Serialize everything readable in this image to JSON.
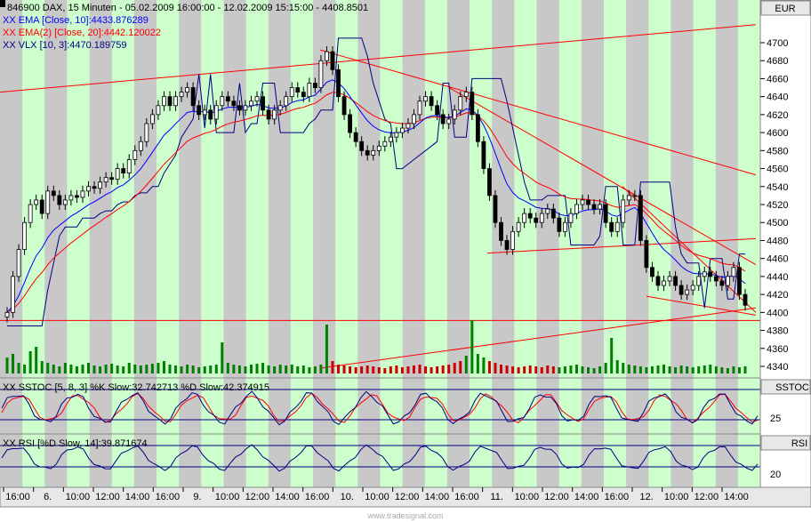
{
  "header": {
    "line1": "846900 DAX, 15 Minuten - 05.02.2009 16:00:00 - 12.02.2009 15:15:00 - 4408.8501",
    "line2": "XX EMA [Close, 10]:4433.876289",
    "line3": "XX EMA(2) [Close, 20]:4442.120022",
    "line4": "XX VLX [10, 3]:4470.189759"
  },
  "colors": {
    "green_band": "#ccffcc",
    "grey_band": "#c8c8c8",
    "ema10": "#0000ff",
    "ema20": "#ff0000",
    "vlx": "#000080",
    "trendline": "#ff0000",
    "volume": "#008000",
    "volume_red": "#cc0000"
  },
  "right_axis": {
    "currency": "EUR",
    "ticks": [
      "4700",
      "4680",
      "4660",
      "4640",
      "4620",
      "4600",
      "4580",
      "4560",
      "4540",
      "4520",
      "4500",
      "4480",
      "4460",
      "4440",
      "4420",
      "4400",
      "4380",
      "4360",
      "4340"
    ],
    "sstoc_label": "SSTOC",
    "sstoc_tick": "25",
    "rsi_label": "RSI",
    "rsi_tick": "20"
  },
  "sstoc": {
    "label": "XX SSTOC [5, 8, 3] %K Slow:32.742713 %D Slow:42.374915"
  },
  "rsi": {
    "label": "XX RSI [%D Slow, 14]:39.871674"
  },
  "x_axis": {
    "labels": [
      "16:00",
      "6.",
      "10:00",
      "12:00",
      "14:00",
      "16:00",
      "9.",
      "10:00",
      "12:00",
      "14:00",
      "16:00",
      "10.",
      "10:00",
      "12:00",
      "14:00",
      "16:00",
      "11.",
      "10:00",
      "12:00",
      "14:00",
      "16:00",
      "12.",
      "10:00",
      "12:00",
      "14:00"
    ]
  },
  "watermark": "www.tradesignal.com",
  "chart_data": {
    "type": "candlestick",
    "symbol": "846900 DAX",
    "interval": "15 Minuten",
    "ylim": [
      4330,
      4720
    ],
    "close_series": [
      4400,
      4440,
      4470,
      4500,
      4520,
      4525,
      4510,
      4535,
      4530,
      4520,
      4525,
      4530,
      4528,
      4535,
      4540,
      4538,
      4545,
      4550,
      4548,
      4560,
      4555,
      4570,
      4580,
      4590,
      4610,
      4620,
      4630,
      4640,
      4630,
      4640,
      4645,
      4650,
      4630,
      4620,
      4625,
      4615,
      4630,
      4640,
      4635,
      4630,
      4625,
      4630,
      4635,
      4640,
      4625,
      4615,
      4625,
      4630,
      4640,
      4650,
      4645,
      4640,
      4655,
      4650,
      4680,
      4690,
      4670,
      4640,
      4620,
      4600,
      4590,
      4580,
      4575,
      4580,
      4585,
      4590,
      4595,
      4600,
      4605,
      4610,
      4620,
      4635,
      4640,
      4630,
      4620,
      4610,
      4615,
      4625,
      4640,
      4645,
      4620,
      4590,
      4560,
      4530,
      4500,
      4480,
      4470,
      4490,
      4500,
      4510,
      4505,
      4500,
      4510,
      4515,
      4505,
      4490,
      4500,
      4510,
      4520,
      4525,
      4520,
      4515,
      4520,
      4500,
      4490,
      4500,
      4525,
      4530,
      4530,
      4480,
      4450,
      4440,
      4430,
      4435,
      4440,
      4430,
      4420,
      4425,
      4430,
      4440,
      4445,
      4440,
      4435,
      4430,
      4440,
      4450,
      4420,
      4408
    ],
    "ema10_last": 4433.876289,
    "ema20_last": 4442.120022,
    "vlx_last": 4470.189759,
    "volume": [
      18,
      22,
      12,
      10,
      25,
      30,
      14,
      12,
      10,
      8,
      12,
      10,
      8,
      10,
      12,
      9,
      8,
      10,
      11,
      9,
      8,
      12,
      10,
      9,
      10,
      11,
      12,
      14,
      10,
      9,
      8,
      10,
      9,
      7,
      8,
      9,
      10,
      35,
      12,
      10,
      9,
      8,
      10,
      11,
      12,
      9,
      8,
      10,
      9,
      10,
      8,
      9,
      7,
      8,
      10,
      55,
      14,
      10,
      9,
      8,
      7,
      8,
      9,
      8,
      7,
      6,
      8,
      9,
      7,
      8,
      9,
      10,
      8,
      7,
      8,
      9,
      10,
      12,
      14,
      20,
      60,
      22,
      18,
      14,
      12,
      10,
      9,
      8,
      7,
      8,
      9,
      8,
      7,
      9,
      8,
      7,
      8,
      9,
      10,
      8,
      7,
      6,
      8,
      12,
      40,
      15,
      12,
      10,
      9,
      8,
      7,
      8,
      9,
      10,
      8,
      7,
      9,
      8,
      7,
      8,
      9,
      10,
      8,
      7,
      6,
      8,
      7,
      8
    ],
    "sstoc_k_last": 32.742713,
    "sstoc_d_last": 42.374915,
    "rsi_last": 39.871674
  }
}
